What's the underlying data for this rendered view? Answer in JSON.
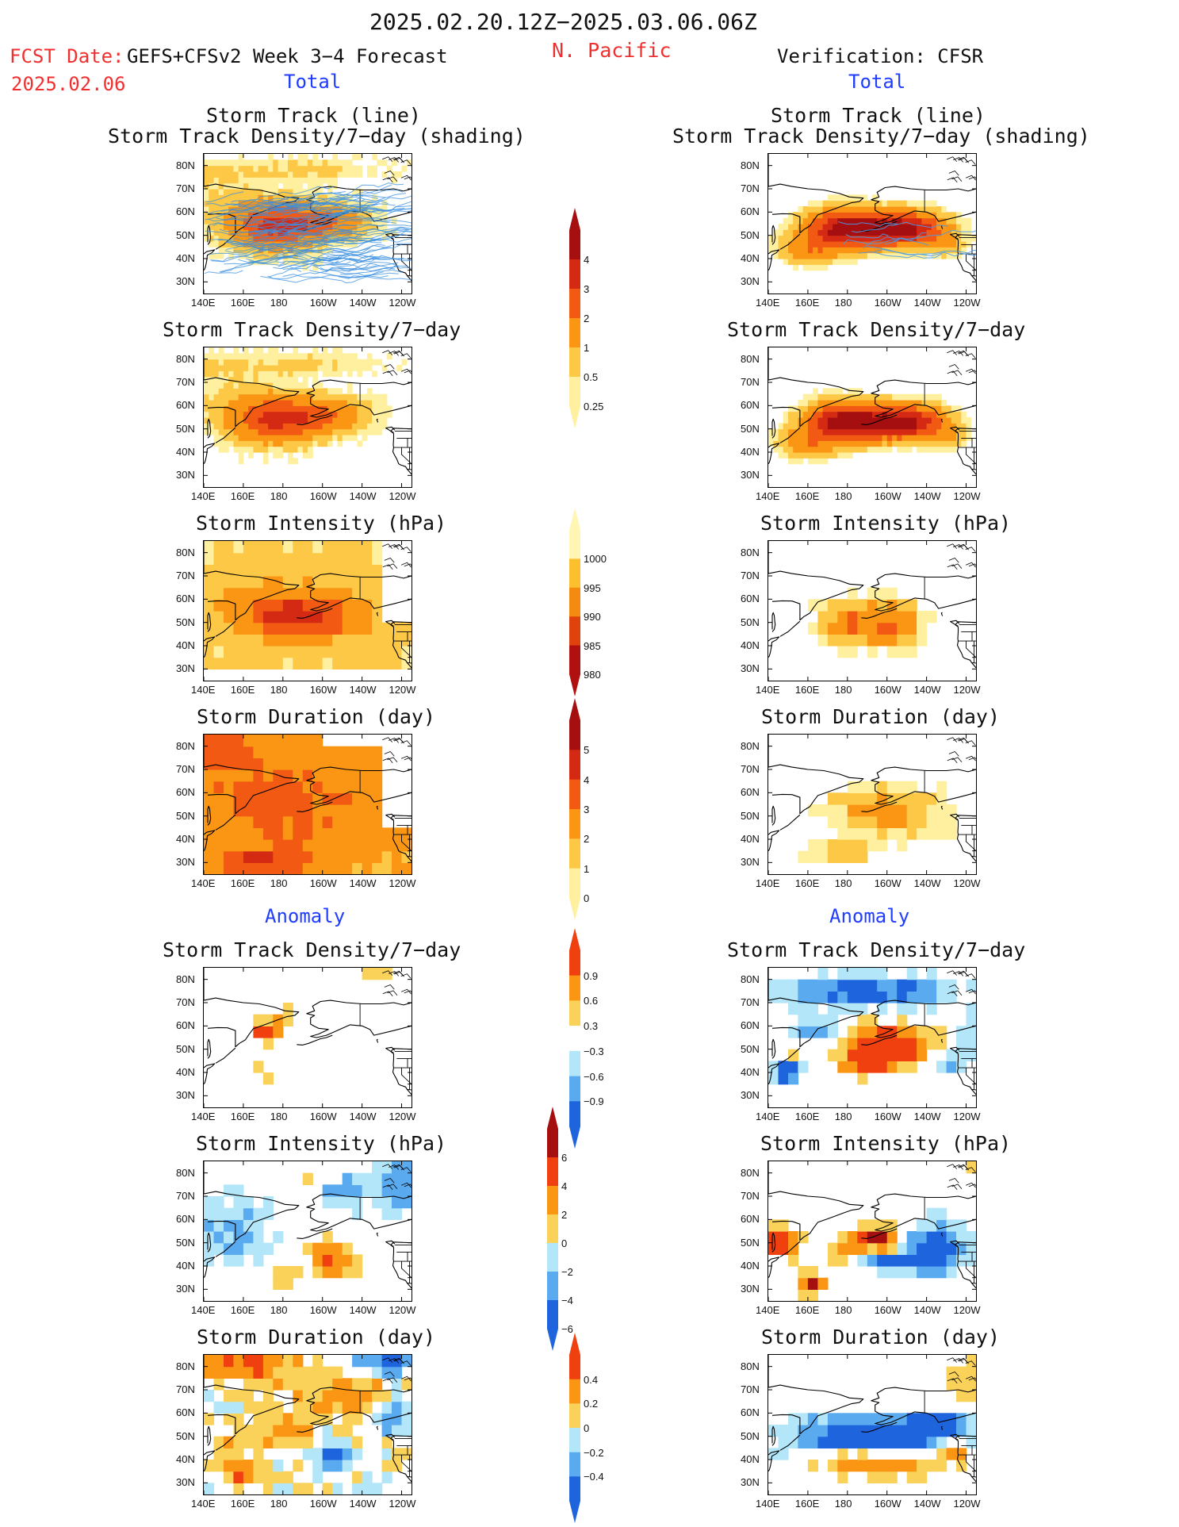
{
  "header": {
    "period": "2025.02.20.12Z−2025.03.06.06Z",
    "fcst_label": "FCST Date:",
    "fcst_model": "GEFS+CFSv2 Week 3−4 Forecast",
    "fcst_date": "2025.02.06",
    "region": "N. Pacific",
    "verification": "Verification: CFSR",
    "left_total": "Total",
    "right_total": "Total",
    "left_anomaly": "Anomaly",
    "right_anomaly": "Anomaly"
  },
  "panel_titles": {
    "track_line": "Storm Track (line)",
    "track_shading": "Storm Track Density/7−day (shading)",
    "density": "Storm Track Density/7−day",
    "intensity": "Storm Intensity (hPa)",
    "duration": "Storm Duration (day)"
  },
  "axes": {
    "lat_labels": [
      "80N",
      "70N",
      "60N",
      "50N",
      "40N",
      "30N"
    ],
    "lon_labels": [
      "140E",
      "160E",
      "180",
      "160W",
      "140W",
      "120W"
    ]
  },
  "colorbars": {
    "density_total": {
      "labels": [
        "4",
        "3",
        "2",
        "1",
        "0.5",
        "0.25"
      ],
      "colors": [
        "#a50f0f",
        "#d42a14",
        "#f25a14",
        "#fa9614",
        "#fcc846",
        "#fff0a0"
      ]
    },
    "intensity_total": {
      "labels": [
        "1000",
        "995",
        "990",
        "985",
        "980"
      ],
      "colors": [
        "#fff6b4",
        "#fcbf2e",
        "#f58a10",
        "#e0420e",
        "#b01010"
      ]
    },
    "duration_total": {
      "labels": [
        "5",
        "4",
        "3",
        "2",
        "1",
        "0"
      ],
      "colors": [
        "#a50f0f",
        "#d42a14",
        "#f25a14",
        "#fa9614",
        "#fcc846",
        "#fff0a0"
      ]
    },
    "density_anom": {
      "labels": [
        "0.9",
        "0.6",
        "0.3",
        "−0.3",
        "−0.6",
        "−0.9"
      ],
      "colors": [
        "#f04010",
        "#fa9614",
        "#fad25a",
        "#ffffff",
        "#b4e6fa",
        "#5aaaf0",
        "#1e64dc"
      ]
    },
    "intensity_anom": {
      "labels": [
        "6",
        "4",
        "2",
        "0",
        "−2",
        "−4",
        "−6"
      ],
      "colors": [
        "#a50f0f",
        "#f04010",
        "#fa9614",
        "#fad25a",
        "#b4e6fa",
        "#5aaaf0",
        "#1e64dc"
      ]
    },
    "duration_anom": {
      "labels": [
        "0.4",
        "0.2",
        "0",
        "−0.2",
        "−0.4"
      ],
      "colors": [
        "#f04010",
        "#fa9614",
        "#fad25a",
        "#b4e6fa",
        "#5aaaf0",
        "#1e64dc"
      ]
    }
  },
  "map_panels": [
    {
      "id": "fc-track",
      "field": "track_density_with_tracks",
      "source": "GEFS+CFSv2",
      "style": "total"
    },
    {
      "id": "ob-track",
      "field": "track_density_with_tracks",
      "source": "CFSR",
      "style": "total"
    },
    {
      "id": "fc-density",
      "field": "track_density",
      "source": "GEFS+CFSv2",
      "style": "total"
    },
    {
      "id": "ob-density",
      "field": "track_density",
      "source": "CFSR",
      "style": "total"
    },
    {
      "id": "fc-intensity",
      "field": "intensity",
      "source": "GEFS+CFSv2",
      "style": "total"
    },
    {
      "id": "ob-intensity",
      "field": "intensity",
      "source": "CFSR",
      "style": "total"
    },
    {
      "id": "fc-duration",
      "field": "duration",
      "source": "GEFS+CFSv2",
      "style": "total"
    },
    {
      "id": "ob-duration",
      "field": "duration",
      "source": "CFSR",
      "style": "total"
    },
    {
      "id": "fc-density-anom",
      "field": "track_density",
      "source": "GEFS+CFSv2",
      "style": "anomaly"
    },
    {
      "id": "ob-density-anom",
      "field": "track_density",
      "source": "CFSR",
      "style": "anomaly"
    },
    {
      "id": "fc-intensity-anom",
      "field": "intensity",
      "source": "GEFS+CFSv2",
      "style": "anomaly"
    },
    {
      "id": "ob-intensity-anom",
      "field": "intensity",
      "source": "CFSR",
      "style": "anomaly"
    },
    {
      "id": "fc-duration-anom",
      "field": "duration",
      "source": "GEFS+CFSv2",
      "style": "anomaly"
    },
    {
      "id": "ob-duration-anom",
      "field": "duration",
      "source": "CFSR",
      "style": "anomaly"
    }
  ]
}
